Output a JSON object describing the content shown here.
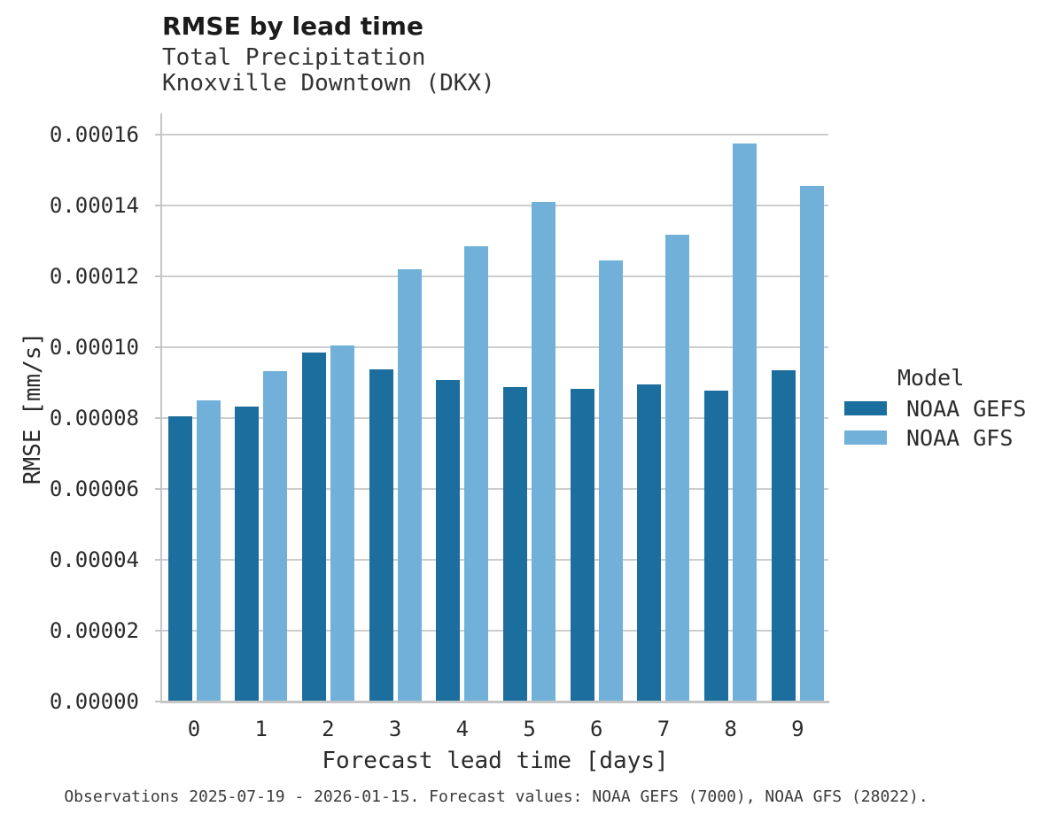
{
  "chart_data": {
    "type": "bar",
    "title": "RMSE by lead time",
    "subtitle_lines": [
      "Total Precipitation",
      "Knoxville Downtown (DKX)"
    ],
    "xlabel": "Forecast lead time [days]",
    "ylabel": "RMSE [mm/s]",
    "caption": "Observations 2025-07-19 - 2026-01-15. Forecast values: NOAA GEFS (7000), NOAA GFS (28022).",
    "categories": [
      "0",
      "1",
      "2",
      "3",
      "4",
      "5",
      "6",
      "7",
      "8",
      "9"
    ],
    "series": [
      {
        "name": "NOAA GEFS",
        "color": "#1b6e9d",
        "values": [
          8.05e-05,
          8.33e-05,
          9.86e-05,
          9.37e-05,
          9.07e-05,
          8.88e-05,
          8.83e-05,
          8.96e-05,
          8.78e-05,
          9.34e-05
        ]
      },
      {
        "name": "NOAA GFS",
        "color": "#71b1d9",
        "values": [
          8.49e-05,
          9.32e-05,
          0.0001006,
          0.0001221,
          0.0001285,
          0.0001409,
          0.0001244,
          0.0001318,
          0.0001574,
          0.0001454
        ]
      }
    ],
    "ylim": [
      0,
      0.000166
    ],
    "y_ticks": [
      "0.00000",
      "0.00002",
      "0.00004",
      "0.00006",
      "0.00008",
      "0.00010",
      "0.00012",
      "0.00014",
      "0.00016"
    ],
    "grid": "horizontal",
    "legend": {
      "title": "Model",
      "position": "right"
    }
  },
  "colors": {
    "grid": "#cdcdcd",
    "spine": "#c5c5c5",
    "background": "#ffffff",
    "noaa_gefs": "#1b6e9d",
    "noaa_gfs": "#71b1d9"
  }
}
